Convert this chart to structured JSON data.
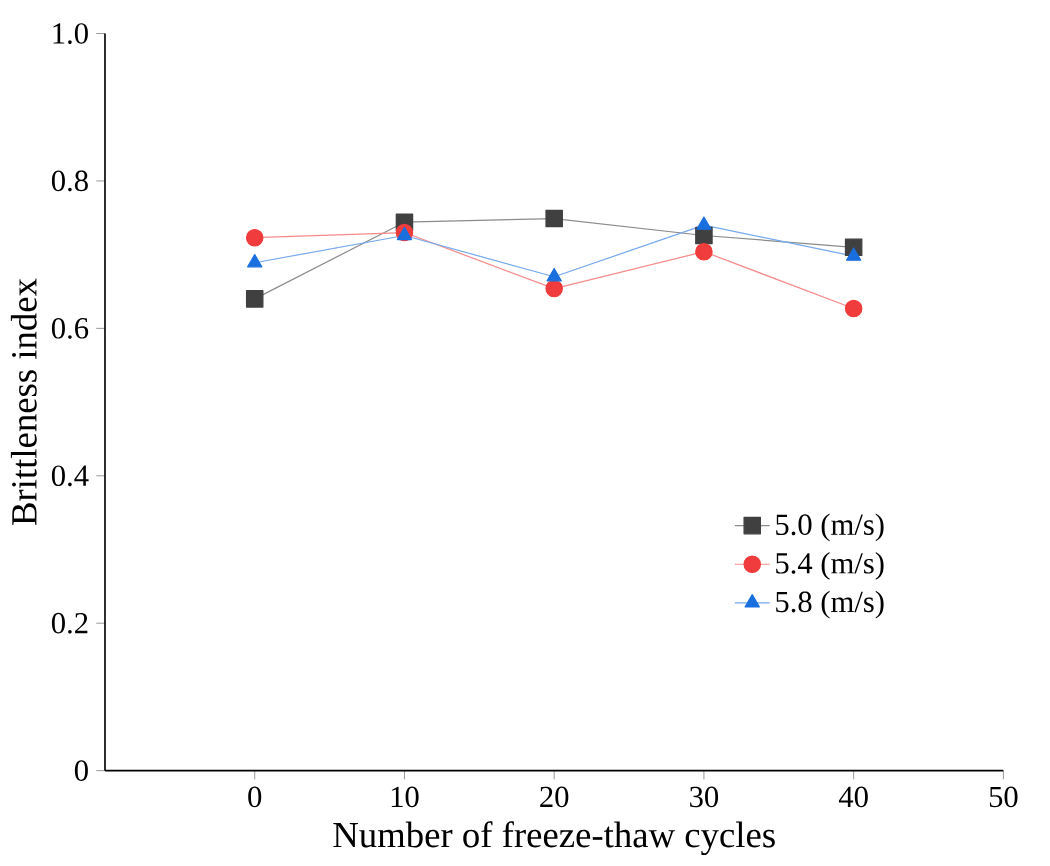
{
  "chart_data": {
    "type": "line",
    "xlabel": "Number of freeze-thaw cycles",
    "ylabel": "Brittleness index",
    "x": [
      0,
      10,
      20,
      30,
      40
    ],
    "xlim": [
      -10,
      50
    ],
    "xticks": [
      0,
      10,
      20,
      30,
      40,
      50
    ],
    "ylim": [
      0,
      1
    ],
    "yticks": [
      {
        "value": 0,
        "label": "0"
      },
      {
        "value": 0.2,
        "label": "0.2"
      },
      {
        "value": 0.4,
        "label": "0.4"
      },
      {
        "value": 0.6,
        "label": "0.6"
      },
      {
        "value": 0.8,
        "label": "0.8"
      },
      {
        "value": 1.0,
        "label": "1.0"
      }
    ],
    "grid": false,
    "legend": "right",
    "line_style": "solid",
    "series": [
      {
        "name": "5.0 (m/s)",
        "color": "#404040",
        "marker": "square",
        "values": [
          0.64,
          0.744,
          0.749,
          0.726,
          0.71
        ]
      },
      {
        "name": "5.4 (m/s)",
        "color": "#f03c3c",
        "marker": "circle",
        "values": [
          0.723,
          0.73,
          0.654,
          0.704,
          0.627
        ]
      },
      {
        "name": "5.8 (m/s)",
        "color": "#1a6fdf",
        "marker": "triangle",
        "values": [
          0.689,
          0.726,
          0.67,
          0.74,
          0.698
        ]
      }
    ]
  }
}
